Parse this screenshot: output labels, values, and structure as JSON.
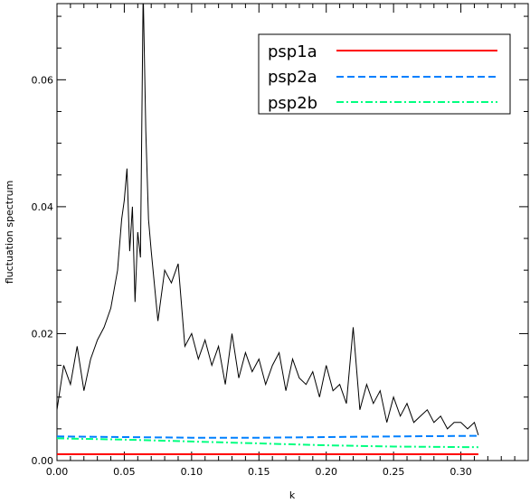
{
  "chart_data": {
    "type": "line",
    "title": "",
    "xlabel": "k",
    "ylabel": "fluctuation spectrum",
    "xlim": [
      0.0,
      0.35
    ],
    "ylim": [
      0.0,
      0.072
    ],
    "x_ticks": [
      "0.00",
      "0.05",
      "0.10",
      "0.15",
      "0.20",
      "0.25",
      "0.30"
    ],
    "y_ticks": [
      "0.00",
      "0.02",
      "0.04",
      "0.06"
    ],
    "x_tick_values": [
      0.0,
      0.05,
      0.1,
      0.15,
      0.2,
      0.25,
      0.3
    ],
    "y_tick_values": [
      0.0,
      0.02,
      0.04,
      0.06
    ],
    "grid": false,
    "legend_position": "top-right",
    "legend": [
      {
        "name": "psp1a",
        "color": "#ff0000",
        "style": "solid"
      },
      {
        "name": "psp2a",
        "color": "#0080ff",
        "style": "dashed"
      },
      {
        "name": "psp2b",
        "color": "#00ff80",
        "style": "dash-dot"
      }
    ],
    "series": [
      {
        "color": "#000000",
        "style": "solid",
        "description_values_from": "raw spectrum",
        "x": [
          0.0,
          0.005,
          0.01,
          0.015,
          0.02,
          0.025,
          0.03,
          0.035,
          0.04,
          0.045,
          0.048,
          0.05,
          0.052,
          0.054,
          0.056,
          0.058,
          0.06,
          0.062,
          0.064,
          0.066,
          0.068,
          0.07,
          0.075,
          0.08,
          0.085,
          0.09,
          0.095,
          0.1,
          0.105,
          0.11,
          0.115,
          0.12,
          0.125,
          0.13,
          0.135,
          0.14,
          0.145,
          0.15,
          0.155,
          0.16,
          0.165,
          0.17,
          0.175,
          0.18,
          0.185,
          0.19,
          0.195,
          0.2,
          0.205,
          0.21,
          0.215,
          0.22,
          0.225,
          0.23,
          0.235,
          0.24,
          0.245,
          0.25,
          0.255,
          0.26,
          0.265,
          0.27,
          0.275,
          0.28,
          0.285,
          0.29,
          0.295,
          0.3,
          0.305,
          0.31,
          0.313
        ],
        "y": [
          0.008,
          0.015,
          0.012,
          0.018,
          0.011,
          0.016,
          0.019,
          0.021,
          0.024,
          0.03,
          0.038,
          0.041,
          0.046,
          0.033,
          0.04,
          0.025,
          0.036,
          0.032,
          0.074,
          0.052,
          0.038,
          0.033,
          0.022,
          0.03,
          0.028,
          0.031,
          0.018,
          0.02,
          0.016,
          0.019,
          0.015,
          0.018,
          0.012,
          0.02,
          0.013,
          0.017,
          0.014,
          0.016,
          0.012,
          0.015,
          0.017,
          0.011,
          0.016,
          0.013,
          0.012,
          0.014,
          0.01,
          0.015,
          0.011,
          0.012,
          0.009,
          0.021,
          0.008,
          0.012,
          0.009,
          0.011,
          0.006,
          0.01,
          0.007,
          0.009,
          0.006,
          0.007,
          0.008,
          0.006,
          0.007,
          0.005,
          0.006,
          0.006,
          0.005,
          0.006,
          0.004
        ]
      },
      {
        "name": "psp1a",
        "color": "#ff0000",
        "style": "solid",
        "x": [
          0.0,
          0.313
        ],
        "y": [
          0.001,
          0.001
        ]
      },
      {
        "name": "psp2a",
        "color": "#0080ff",
        "style": "dashed",
        "x": [
          0.0,
          0.05,
          0.1,
          0.15,
          0.2,
          0.25,
          0.313
        ],
        "y": [
          0.0038,
          0.0037,
          0.0036,
          0.0036,
          0.0037,
          0.0038,
          0.0039
        ]
      },
      {
        "name": "psp2b",
        "color": "#00ff80",
        "style": "dash-dot",
        "x": [
          0.0,
          0.05,
          0.1,
          0.15,
          0.2,
          0.25,
          0.313
        ],
        "y": [
          0.0035,
          0.0033,
          0.003,
          0.0027,
          0.0024,
          0.0022,
          0.0021
        ]
      }
    ]
  }
}
